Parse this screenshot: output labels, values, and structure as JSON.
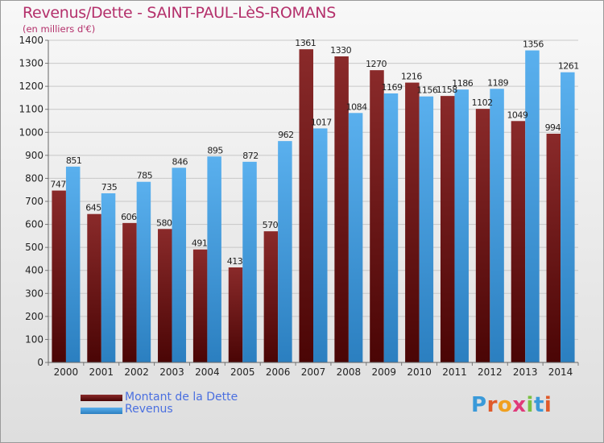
{
  "header": {
    "title": "Revenus/Dette - SAINT-PAUL-LèS-ROMANS",
    "subtitle": "(en milliers d'€)"
  },
  "legend": {
    "items": [
      {
        "label": "Montant de la Dette",
        "color": "#6b1515"
      },
      {
        "label": "Revenus",
        "color": "#3d99dd"
      }
    ]
  },
  "logo": {
    "text": "Proxiti",
    "letters": [
      {
        "ch": "P",
        "color": "#3a9ad9"
      },
      {
        "ch": "r",
        "color": "#e05a2a"
      },
      {
        "ch": "o",
        "color": "#f0a020"
      },
      {
        "ch": "x",
        "color": "#e03a7a"
      },
      {
        "ch": "i",
        "color": "#7ac143"
      },
      {
        "ch": "t",
        "color": "#3a9ad9"
      },
      {
        "ch": "i",
        "color": "#e05a2a"
      }
    ]
  },
  "chart_data": {
    "type": "bar",
    "categories": [
      "2000",
      "2001",
      "2002",
      "2003",
      "2004",
      "2005",
      "2006",
      "2007",
      "2008",
      "2009",
      "2010",
      "2011",
      "2012",
      "2013",
      "2014"
    ],
    "series": [
      {
        "name": "Montant de la Dette",
        "color": "#7a1f1f",
        "values": [
          747,
          645,
          606,
          580,
          491,
          413,
          570,
          1361,
          1330,
          1270,
          1216,
          1158,
          1102,
          1049,
          994
        ],
        "labels": [
          "747",
          "645",
          "606",
          "580",
          "491",
          "413",
          "570",
          "1361",
          "1330",
          "1270",
          "1216",
          "1158",
          "1102",
          "1049",
          "994"
        ]
      },
      {
        "name": "Revenus",
        "color": "#4aa3e6",
        "values": [
          851,
          735,
          785,
          846,
          895,
          872,
          962,
          1017,
          1084,
          1169,
          1156,
          1186,
          1189,
          1356,
          1261
        ],
        "labels": [
          "851",
          "735",
          "785",
          "846",
          "895",
          "872",
          "962",
          "1017",
          "1084",
          "1169",
          "1156",
          "1186",
          "1189",
          "1356",
          "1261"
        ]
      }
    ],
    "ylim": [
      0,
      1400
    ],
    "yticks": [
      0,
      100,
      200,
      300,
      400,
      500,
      600,
      700,
      800,
      900,
      1000,
      1100,
      1200,
      1300,
      1400
    ],
    "grid": true
  }
}
